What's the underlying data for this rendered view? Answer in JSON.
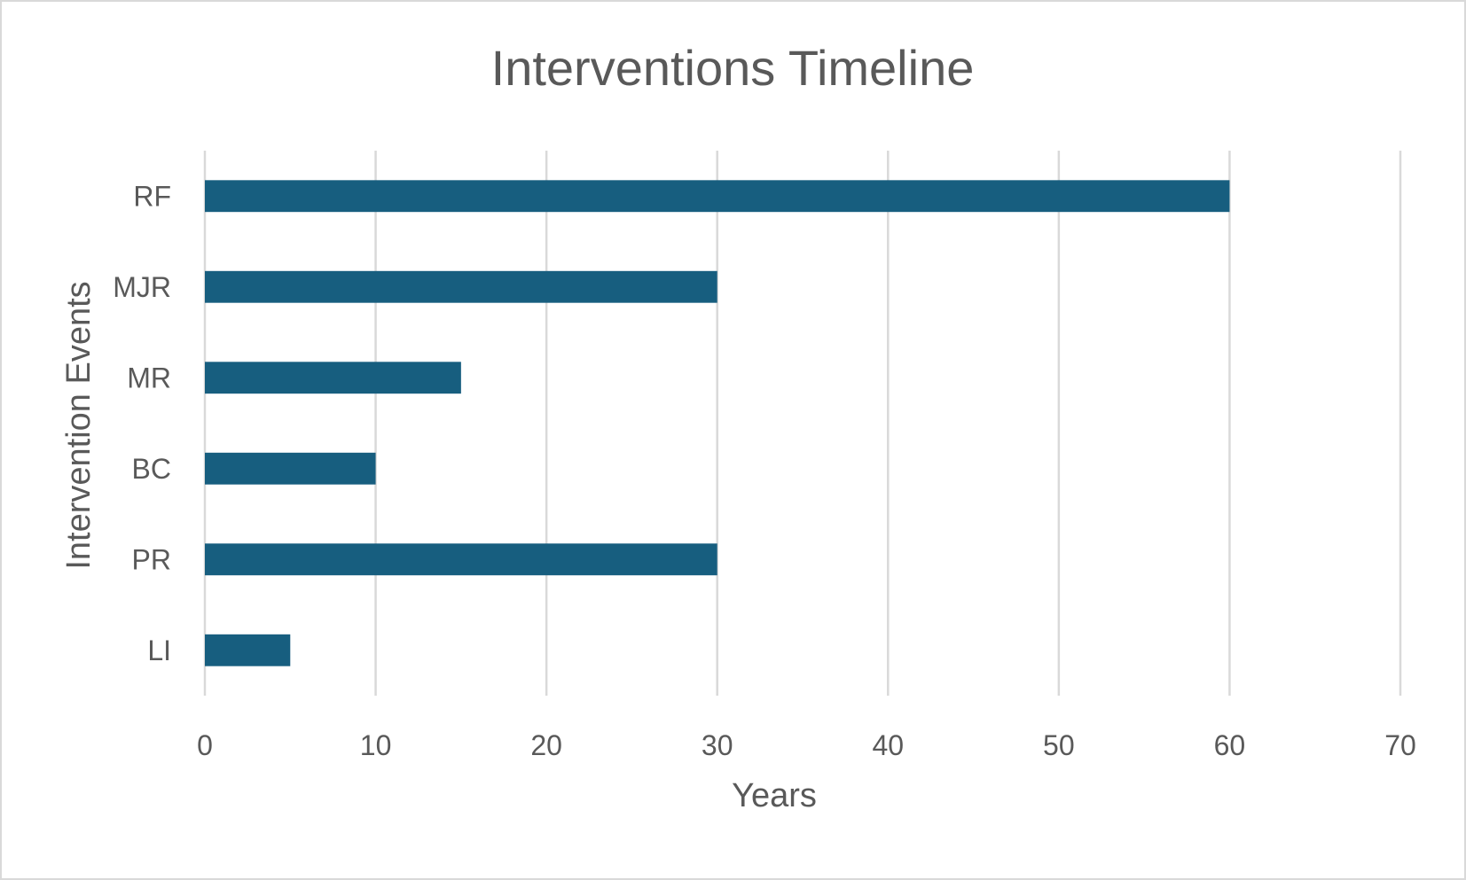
{
  "chart_data": {
    "type": "bar",
    "orientation": "horizontal",
    "title": "Interventions Timeline",
    "xlabel": "Years",
    "ylabel": "Intervention Events",
    "categories": [
      "RF",
      "MJR",
      "MR",
      "BC",
      "PR",
      "LI"
    ],
    "values": [
      60,
      30,
      15,
      10,
      30,
      5
    ],
    "xlim": [
      0,
      70
    ],
    "xticks": [
      "0",
      "10",
      "20",
      "30",
      "40",
      "50",
      "60",
      "70"
    ],
    "grid": "vertical",
    "legend": "none",
    "bar_color": "#175e7f"
  }
}
